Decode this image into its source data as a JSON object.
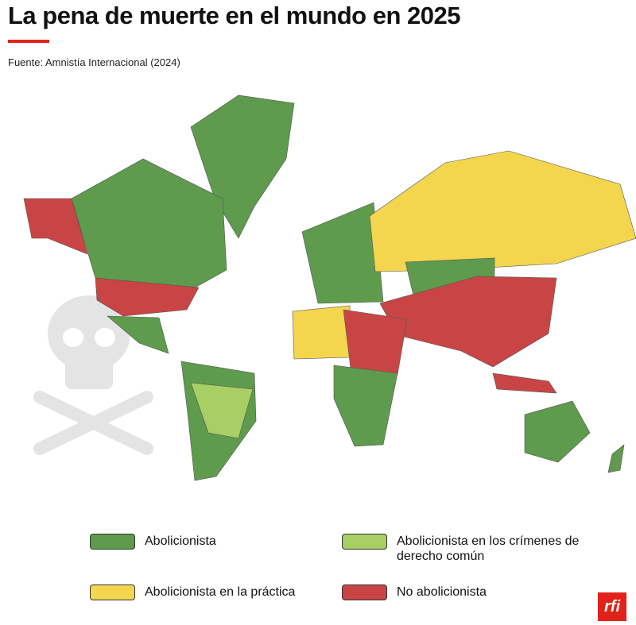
{
  "header": {
    "title": "La pena de muerte en el mundo en 2025",
    "source": "Fuente: Amnistía Internacional (2024)"
  },
  "legend": [
    {
      "label": "Abolicionista",
      "color": "#5e9b4c"
    },
    {
      "label": "Abolicionista en los crímenes de derecho común",
      "color": "#a7cf63"
    },
    {
      "label": "Abolicionista en la práctica",
      "color": "#f4d64e"
    },
    {
      "label": "No abolicionista",
      "color": "#c94545"
    }
  ],
  "logo": "rfi"
}
